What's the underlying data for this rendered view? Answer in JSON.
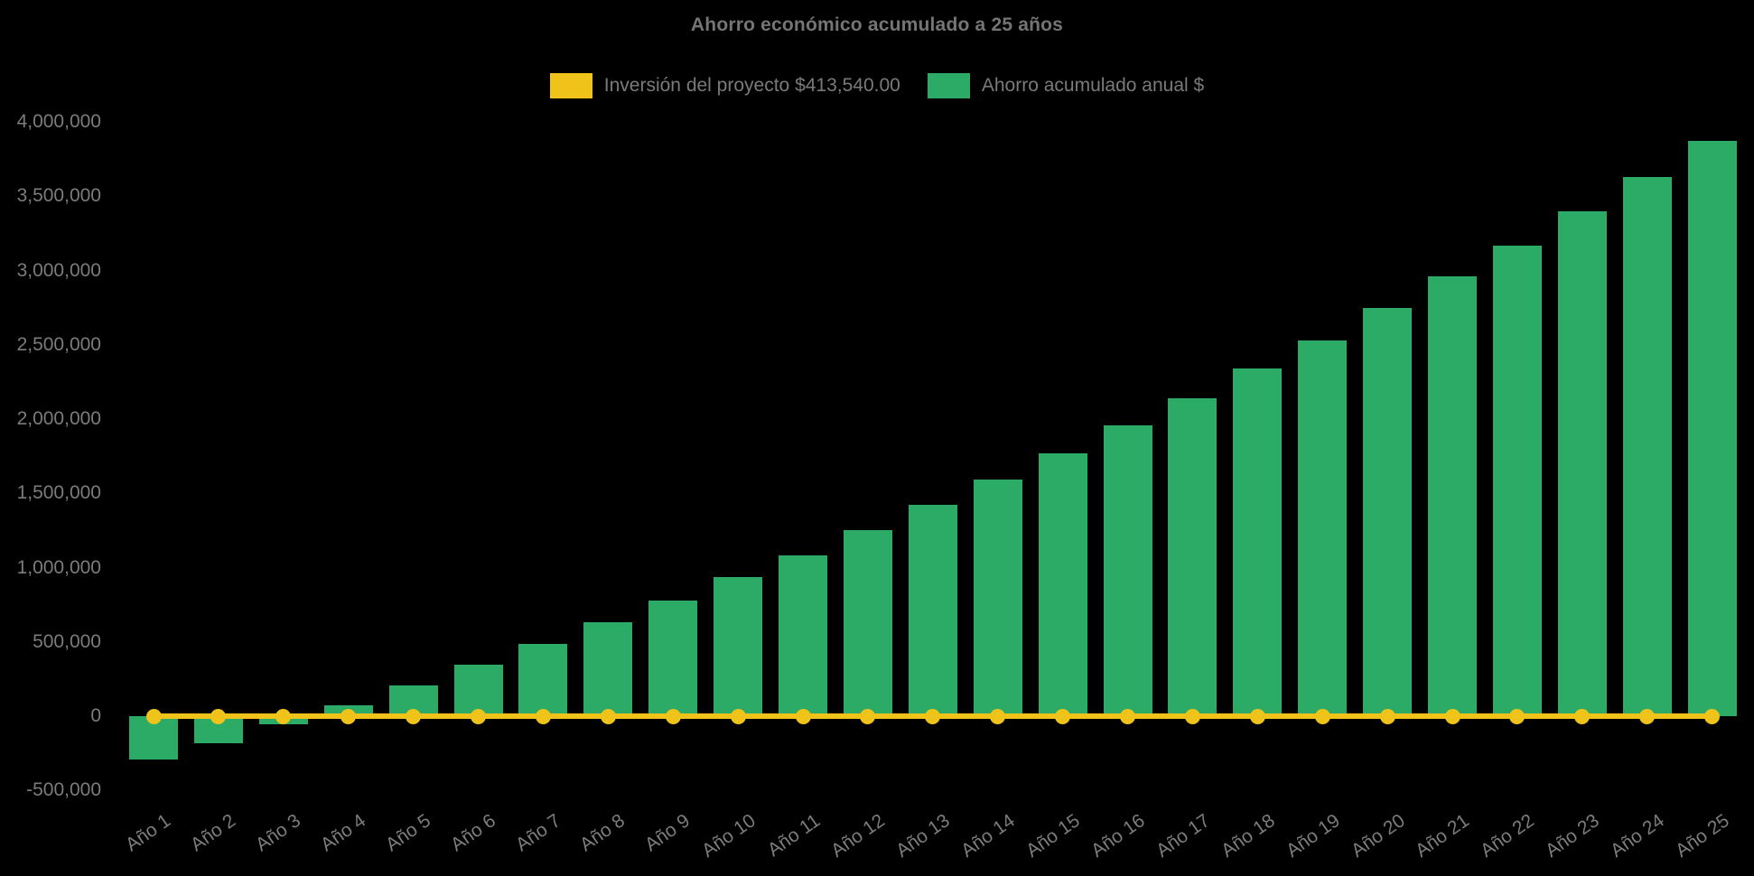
{
  "title": "Ahorro económico acumulado a 25 años",
  "colors": {
    "background": "#000000",
    "bar_green": "#2BAB66",
    "line_yellow": "#EFC319",
    "title_text": "#757575",
    "axis_text": "#7C7C7C"
  },
  "legend": [
    {
      "label": "Inversión del proyecto $413,540.00",
      "color": "#EFC319",
      "series_type": "line"
    },
    {
      "label": "Ahorro acumulado anual $",
      "color": "#2BAB66",
      "series_type": "bar"
    }
  ],
  "chart_data": {
    "type": "bar",
    "title": "Ahorro económico acumulado a 25 años",
    "xlabel": "",
    "ylabel": "",
    "grid": false,
    "legend_position": "top-center",
    "ylim": [
      -500000,
      4000000
    ],
    "ytick_values": [
      4000000,
      3500000,
      3000000,
      2500000,
      2000000,
      1500000,
      1000000,
      500000,
      0,
      -500000
    ],
    "ytick_labels": [
      "4,000,000",
      "3,500,000",
      "3,000,000",
      "2,500,000",
      "2,000,000",
      "1,500,000",
      "1,000,000",
      "500,000",
      "0",
      "-500,000"
    ],
    "categories": [
      "Año 1",
      "Año 2",
      "Año 3",
      "Año 4",
      "Año 5",
      "Año 6",
      "Año 7",
      "Año 8",
      "Año 9",
      "Año 10",
      "Año 11",
      "Año 12",
      "Año 13",
      "Año 14",
      "Año 15",
      "Año 16",
      "Año 17",
      "Año 18",
      "Año 19",
      "Año 20",
      "Año 21",
      "Año 22",
      "Año 23",
      "Año 24",
      "Año 25"
    ],
    "series": [
      {
        "name": "Ahorro acumulado anual $",
        "type": "bar",
        "color": "#2BAB66",
        "values": [
          -290000,
          -180000,
          -55000,
          75000,
          205000,
          345000,
          485000,
          630000,
          780000,
          935000,
          1085000,
          1250000,
          1420000,
          1590000,
          1770000,
          1960000,
          2140000,
          2340000,
          2530000,
          2750000,
          2960000,
          3170000,
          3400000,
          3630000,
          3870000
        ]
      },
      {
        "name": "Inversión del proyecto $413,540.00",
        "type": "line",
        "color": "#EFC319",
        "marker": "circle",
        "values": [
          0,
          0,
          0,
          0,
          0,
          0,
          0,
          0,
          0,
          0,
          0,
          0,
          0,
          0,
          0,
          0,
          0,
          0,
          0,
          0,
          0,
          0,
          0,
          0,
          0
        ]
      }
    ]
  }
}
